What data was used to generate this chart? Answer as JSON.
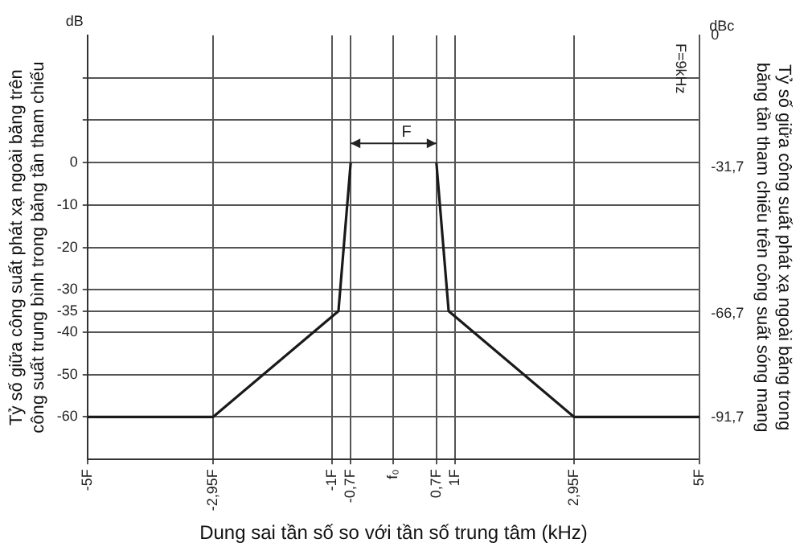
{
  "chart_data": {
    "type": "line",
    "xlabel": "Dung sai tần số so với tần số trung tâm (kHz)",
    "ylabel": "Tỷ số giữa công suất phát xạ ngoài băng trên công suất trung bình trong băng tần tham chiếu",
    "y2label": "Tỷ số giữa công suất phát xạ ngoài băng trong băng tần tham chiếu trên công suất sóng mang",
    "x": [
      -5,
      -2.95,
      -0.9,
      -0.7,
      0,
      0.7,
      0.9,
      2.95,
      5
    ],
    "series": [
      {
        "color": "#1a1a1a",
        "values": [
          -60,
          -60,
          -35,
          0,
          null,
          0,
          -35,
          -60,
          -60
        ]
      }
    ],
    "xlim": [
      -5,
      5
    ],
    "xticks": [
      {
        "value": -5,
        "label": "-5F"
      },
      {
        "value": -2.95,
        "label": "-2,95F"
      },
      {
        "value": -1,
        "label": "-1F"
      },
      {
        "value": -0.7,
        "label": "-0,7F"
      },
      {
        "value": 0,
        "label": "f₀"
      },
      {
        "value": 0.7,
        "label": "0,7F"
      },
      {
        "value": 1,
        "label": "1F"
      },
      {
        "value": 2.95,
        "label": "2,95F"
      },
      {
        "value": 5,
        "label": "5F"
      }
    ],
    "ylim": [
      -70,
      30
    ],
    "yticks": [
      {
        "value": 20,
        "label": null
      },
      {
        "value": 10,
        "label": null
      },
      0,
      -10,
      -20,
      -30,
      -35,
      -40,
      -50,
      -60
    ],
    "y2lim": [
      -101.7,
      0
    ],
    "y2ticks": [
      0,
      {
        "value": -31.7,
        "label": "-31,7"
      },
      {
        "value": -66.7,
        "label": "-66,7"
      },
      {
        "value": -91.7,
        "label": "-91,7"
      }
    ],
    "grid": true,
    "legend": false,
    "marker": "none",
    "line_style": "solid",
    "annotations": [
      "dB",
      "dBc",
      "F=9kHz",
      "F"
    ]
  }
}
